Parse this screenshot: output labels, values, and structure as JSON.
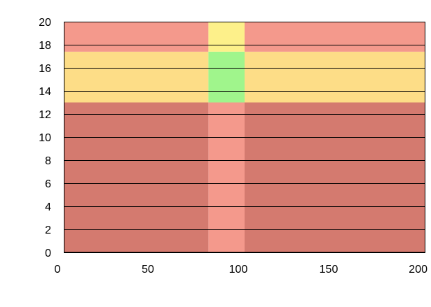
{
  "chart_data": {
    "type": "heatmap",
    "title": "",
    "xlabel": "",
    "ylabel": "",
    "xlim": [
      0,
      200
    ],
    "ylim": [
      0,
      20
    ],
    "x_ticks": [
      "0",
      "50",
      "100",
      "150",
      "200"
    ],
    "y_ticks": [
      "0",
      "2",
      "4",
      "6",
      "8",
      "10",
      "12",
      "14",
      "16",
      "18",
      "20"
    ],
    "gridlines": "horizontal",
    "x_bands": [
      {
        "from": 0,
        "to": 80
      },
      {
        "from": 80,
        "to": 100
      },
      {
        "from": 100,
        "to": 200
      }
    ],
    "y_bands": [
      {
        "from": 0,
        "to": 13
      },
      {
        "from": 13,
        "to": 17.4
      },
      {
        "from": 17.4,
        "to": 20
      }
    ],
    "cells": [
      [
        "#d47a6f",
        "#f4998c",
        "#d47a6f"
      ],
      [
        "#fddd87",
        "#a0f58c",
        "#fddd87"
      ],
      [
        "#f4998c",
        "#fdf08a",
        "#f4998c"
      ]
    ]
  }
}
